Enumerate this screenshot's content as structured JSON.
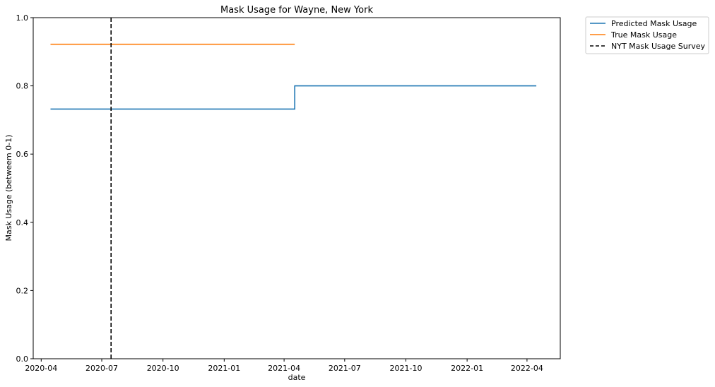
{
  "chart_data": {
    "type": "line",
    "title": "Mask Usage for Wayne, New York",
    "xlabel": "date",
    "ylabel": "Mask Usage (betweem 0-1)",
    "ylim": [
      0,
      1
    ],
    "xlim": [
      "2020-03-20",
      "2022-05-21"
    ],
    "x_ticks": [
      "2020-04",
      "2020-07",
      "2020-10",
      "2021-01",
      "2021-04",
      "2021-07",
      "2021-10",
      "2022-01",
      "2022-04"
    ],
    "y_ticks": [
      "0.0",
      "0.2",
      "0.4",
      "0.6",
      "0.8",
      "1.0"
    ],
    "grid": false,
    "legend_position": "outside top-right",
    "series": [
      {
        "name": "Predicted Mask Usage",
        "color": "#1f77b4",
        "style": "solid",
        "x": [
          "2020-04-15",
          "2021-04-17",
          "2021-04-17",
          "2022-04-15"
        ],
        "y": [
          0.732,
          0.732,
          0.8,
          0.8
        ]
      },
      {
        "name": "True Mask Usage",
        "color": "#ff7f0e",
        "style": "solid",
        "x": [
          "2020-04-15",
          "2021-04-17"
        ],
        "y": [
          0.922,
          0.922
        ]
      },
      {
        "name": "NYT Mask Usage Survey",
        "color": "#000000",
        "style": "dashed",
        "x_vline": "2020-07-15"
      }
    ]
  }
}
